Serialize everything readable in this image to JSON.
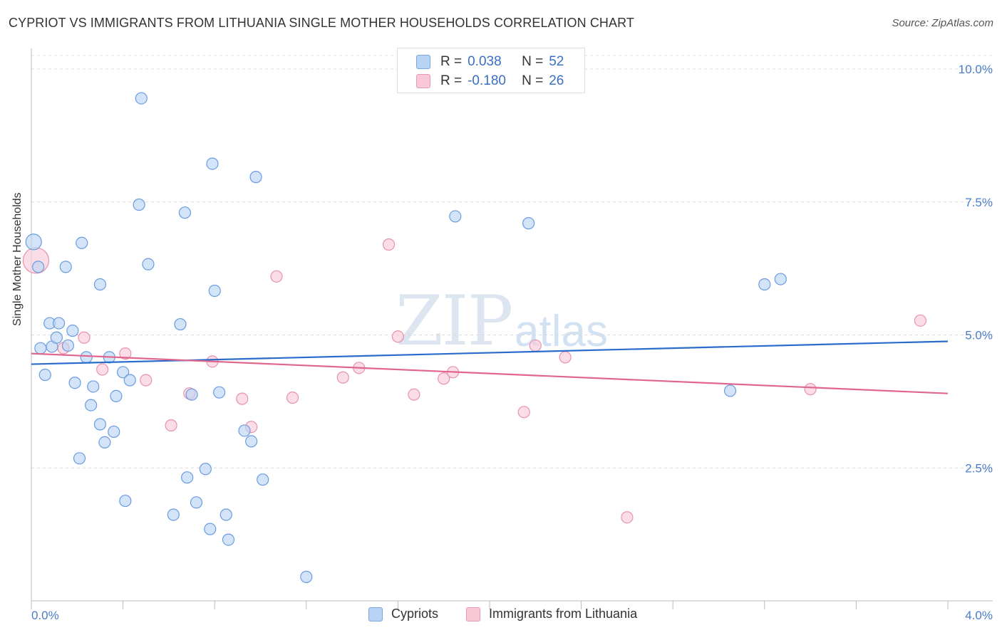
{
  "title": "CYPRIOT VS IMMIGRANTS FROM LITHUANIA SINGLE MOTHER HOUSEHOLDS CORRELATION CHART",
  "source": "Source: ZipAtlas.com",
  "watermark": {
    "zip": "ZIP",
    "atlas": "atlas"
  },
  "legend": {
    "r_label": "R =",
    "n_label": "N =",
    "rows": [
      {
        "r": "0.038",
        "n": "52",
        "color": "#b9d3f5"
      },
      {
        "r": "-0.180",
        "n": "26",
        "color": "#f8c8d6"
      }
    ]
  },
  "bottom_legend": [
    {
      "label": "Cypriots",
      "color": "#b9d3f5"
    },
    {
      "label": "Immigrants from Lithuania",
      "color": "#f8c8d6"
    }
  ],
  "chart_data": {
    "type": "scatter",
    "ylabel": "Single Mother Households",
    "xlabel": "",
    "xlim": [
      0.0,
      4.0
    ],
    "ylim": [
      0.0,
      10.5
    ],
    "x_tick_labels": {
      "left": "0.0%",
      "right": "4.0%"
    },
    "y_ticks": [
      {
        "value": 2.5,
        "label": "2.5%"
      },
      {
        "value": 5.0,
        "label": "5.0%"
      },
      {
        "value": 7.5,
        "label": "7.5%"
      },
      {
        "value": 10.0,
        "label": "10.0%"
      }
    ],
    "series": [
      {
        "name": "Cypriots",
        "color": "#6a9be0",
        "fill": "#bcd5f4",
        "trend": {
          "x": [
            0.0,
            4.0
          ],
          "y": [
            4.45,
            4.88
          ],
          "color": "#2a6ccc"
        },
        "points": [
          [
            0.01,
            6.75
          ],
          [
            0.03,
            6.28
          ],
          [
            0.04,
            4.75
          ],
          [
            0.06,
            4.25
          ],
          [
            0.08,
            5.22
          ],
          [
            0.09,
            4.78
          ],
          [
            0.11,
            4.95
          ],
          [
            0.12,
            5.22
          ],
          [
            0.15,
            6.28
          ],
          [
            0.16,
            4.8
          ],
          [
            0.18,
            5.08
          ],
          [
            0.19,
            4.1
          ],
          [
            0.21,
            2.68
          ],
          [
            0.22,
            6.73
          ],
          [
            0.24,
            4.58
          ],
          [
            0.26,
            3.68
          ],
          [
            0.27,
            4.03
          ],
          [
            0.3,
            5.95
          ],
          [
            0.3,
            3.32
          ],
          [
            0.32,
            2.98
          ],
          [
            0.34,
            4.58
          ],
          [
            0.36,
            3.18
          ],
          [
            0.37,
            3.85
          ],
          [
            0.4,
            4.3
          ],
          [
            0.41,
            1.88
          ],
          [
            0.43,
            4.15
          ],
          [
            0.47,
            7.45
          ],
          [
            0.48,
            9.45
          ],
          [
            0.51,
            6.33
          ],
          [
            0.62,
            1.62
          ],
          [
            0.65,
            5.2
          ],
          [
            0.67,
            7.3
          ],
          [
            0.68,
            2.32
          ],
          [
            0.7,
            3.88
          ],
          [
            0.72,
            1.85
          ],
          [
            0.76,
            2.48
          ],
          [
            0.78,
            1.35
          ],
          [
            0.79,
            8.22
          ],
          [
            0.8,
            5.83
          ],
          [
            0.82,
            3.92
          ],
          [
            0.85,
            1.62
          ],
          [
            0.86,
            1.15
          ],
          [
            0.93,
            3.2
          ],
          [
            0.96,
            3.0
          ],
          [
            0.98,
            7.97
          ],
          [
            1.01,
            2.28
          ],
          [
            1.2,
            0.45
          ],
          [
            1.85,
            7.23
          ],
          [
            2.17,
            7.1
          ],
          [
            3.05,
            3.95
          ],
          [
            3.2,
            5.95
          ],
          [
            3.27,
            6.05
          ]
        ]
      },
      {
        "name": "Immigrants from Lithuania",
        "color": "#e892ab",
        "fill": "#f8cbd8",
        "trend": {
          "x": [
            0.0,
            4.0
          ],
          "y": [
            4.65,
            3.9
          ],
          "color": "#e0668f"
        },
        "points": [
          [
            0.02,
            6.4
          ],
          [
            0.14,
            4.75
          ],
          [
            0.23,
            4.95
          ],
          [
            0.31,
            4.35
          ],
          [
            0.41,
            4.65
          ],
          [
            0.5,
            4.15
          ],
          [
            0.61,
            3.3
          ],
          [
            0.69,
            3.9
          ],
          [
            0.79,
            4.5
          ],
          [
            0.92,
            3.8
          ],
          [
            0.96,
            3.27
          ],
          [
            1.07,
            6.1
          ],
          [
            1.14,
            3.82
          ],
          [
            1.36,
            4.2
          ],
          [
            1.43,
            4.38
          ],
          [
            1.56,
            6.7
          ],
          [
            1.6,
            4.97
          ],
          [
            1.67,
            3.88
          ],
          [
            1.8,
            4.18
          ],
          [
            1.84,
            4.3
          ],
          [
            2.15,
            3.55
          ],
          [
            2.2,
            4.8
          ],
          [
            2.33,
            4.58
          ],
          [
            2.6,
            1.57
          ],
          [
            3.4,
            3.98
          ],
          [
            3.88,
            5.27
          ]
        ]
      }
    ]
  }
}
